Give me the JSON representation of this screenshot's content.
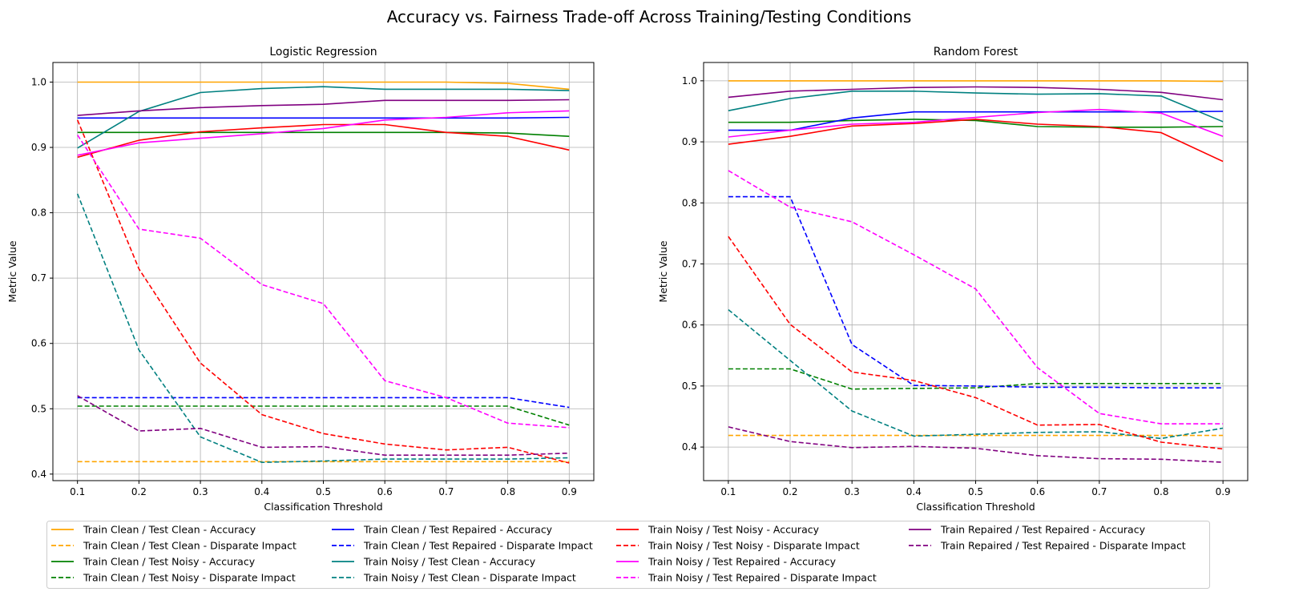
{
  "figure": {
    "suptitle": "Accuracy vs. Fairness Trade-off Across Training/Testing Conditions"
  },
  "series_styles": [
    {
      "name": "Train Clean / Test Clean - Accuracy",
      "color": "#ffa500",
      "dash": "solid"
    },
    {
      "name": "Train Clean / Test Clean - Disparate Impact",
      "color": "#ffa500",
      "dash": "dashed"
    },
    {
      "name": "Train Clean / Test Noisy - Accuracy",
      "color": "#008000",
      "dash": "solid"
    },
    {
      "name": "Train Clean / Test Noisy - Disparate Impact",
      "color": "#008000",
      "dash": "dashed"
    },
    {
      "name": "Train Clean / Test Repaired - Accuracy",
      "color": "#0000ff",
      "dash": "solid"
    },
    {
      "name": "Train Clean / Test Repaired - Disparate Impact",
      "color": "#0000ff",
      "dash": "dashed"
    },
    {
      "name": "Train Noisy / Test Clean - Accuracy",
      "color": "#008080",
      "dash": "solid"
    },
    {
      "name": "Train Noisy / Test Clean - Disparate Impact",
      "color": "#008080",
      "dash": "dashed"
    },
    {
      "name": "Train Noisy / Test Noisy - Accuracy",
      "color": "#ff0000",
      "dash": "solid"
    },
    {
      "name": "Train Noisy / Test Noisy - Disparate Impact",
      "color": "#ff0000",
      "dash": "dashed"
    },
    {
      "name": "Train Noisy / Test Repaired - Accuracy",
      "color": "#ff00ff",
      "dash": "solid"
    },
    {
      "name": "Train Noisy / Test Repaired - Disparate Impact",
      "color": "#ff00ff",
      "dash": "dashed"
    },
    {
      "name": "Train Repaired / Test Repaired - Accuracy",
      "color": "#800080",
      "dash": "solid"
    },
    {
      "name": "Train Repaired / Test Repaired - Disparate Impact",
      "color": "#800080",
      "dash": "dashed"
    }
  ],
  "legend": {
    "placement": "bottom-center",
    "columns": 4
  },
  "chart_data": [
    {
      "type": "line",
      "title": "Logistic Regression",
      "xlabel": "Classification Threshold",
      "ylabel": "Metric Value",
      "grid": true,
      "xlim": [
        0.06,
        0.94
      ],
      "ylim": [
        0.39,
        1.03
      ],
      "xticks": [
        "0.1",
        "0.2",
        "0.3",
        "0.4",
        "0.5",
        "0.6",
        "0.7",
        "0.8",
        "0.9"
      ],
      "yticks": [
        "0.4",
        "0.5",
        "0.6",
        "0.7",
        "0.8",
        "0.9",
        "1.0"
      ],
      "x": [
        0.1,
        0.2,
        0.3,
        0.4,
        0.5,
        0.6,
        0.7,
        0.8,
        0.9
      ],
      "series": [
        {
          "name": "Train Clean / Test Clean - Accuracy",
          "values": [
            1.0,
            1.0,
            1.0,
            1.0,
            1.0,
            1.0,
            1.0,
            0.998,
            0.989
          ]
        },
        {
          "name": "Train Clean / Test Clean - Disparate Impact",
          "values": [
            0.419,
            0.419,
            0.419,
            0.419,
            0.419,
            0.419,
            0.419,
            0.419,
            0.419
          ]
        },
        {
          "name": "Train Clean / Test Noisy - Accuracy",
          "values": [
            0.923,
            0.923,
            0.923,
            0.923,
            0.923,
            0.923,
            0.923,
            0.922,
            0.917
          ]
        },
        {
          "name": "Train Clean / Test Noisy - Disparate Impact",
          "values": [
            0.504,
            0.504,
            0.504,
            0.504,
            0.504,
            0.504,
            0.504,
            0.504,
            0.475
          ]
        },
        {
          "name": "Train Clean / Test Repaired - Accuracy",
          "values": [
            0.945,
            0.945,
            0.945,
            0.945,
            0.945,
            0.945,
            0.945,
            0.945,
            0.946
          ]
        },
        {
          "name": "Train Clean / Test Repaired - Disparate Impact",
          "values": [
            0.517,
            0.517,
            0.517,
            0.517,
            0.517,
            0.517,
            0.517,
            0.517,
            0.502
          ]
        },
        {
          "name": "Train Noisy / Test Clean - Accuracy",
          "values": [
            0.899,
            0.955,
            0.984,
            0.99,
            0.993,
            0.989,
            0.989,
            0.989,
            0.987
          ]
        },
        {
          "name": "Train Noisy / Test Clean - Disparate Impact",
          "values": [
            0.829,
            0.59,
            0.457,
            0.418,
            0.42,
            0.423,
            0.423,
            0.423,
            0.425
          ]
        },
        {
          "name": "Train Noisy / Test Noisy - Accuracy",
          "values": [
            0.885,
            0.911,
            0.924,
            0.93,
            0.935,
            0.935,
            0.923,
            0.917,
            0.896
          ]
        },
        {
          "name": "Train Noisy / Test Noisy - Disparate Impact",
          "values": [
            0.942,
            0.714,
            0.57,
            0.491,
            0.462,
            0.446,
            0.437,
            0.441,
            0.417
          ]
        },
        {
          "name": "Train Noisy / Test Repaired - Accuracy",
          "values": [
            0.888,
            0.907,
            0.914,
            0.921,
            0.929,
            0.942,
            0.946,
            0.953,
            0.956
          ]
        },
        {
          "name": "Train Noisy / Test Repaired - Disparate Impact",
          "values": [
            0.919,
            0.775,
            0.761,
            0.69,
            0.661,
            0.543,
            0.517,
            0.478,
            0.471
          ]
        },
        {
          "name": "Train Repaired / Test Repaired - Accuracy",
          "values": [
            0.949,
            0.956,
            0.961,
            0.964,
            0.966,
            0.972,
            0.972,
            0.972,
            0.973
          ]
        },
        {
          "name": "Train Repaired / Test Repaired - Disparate Impact",
          "values": [
            0.52,
            0.466,
            0.47,
            0.441,
            0.442,
            0.429,
            0.429,
            0.429,
            0.432
          ]
        }
      ]
    },
    {
      "type": "line",
      "title": "Random Forest",
      "xlabel": "Classification Threshold",
      "ylabel": "Metric Value",
      "grid": true,
      "xlim": [
        0.06,
        0.94
      ],
      "ylim": [
        0.345,
        1.03
      ],
      "xticks": [
        "0.1",
        "0.2",
        "0.3",
        "0.4",
        "0.5",
        "0.6",
        "0.7",
        "0.8",
        "0.9"
      ],
      "yticks": [
        "0.4",
        "0.5",
        "0.6",
        "0.7",
        "0.8",
        "0.9",
        "1.0"
      ],
      "x": [
        0.1,
        0.2,
        0.3,
        0.4,
        0.5,
        0.6,
        0.7,
        0.8,
        0.9
      ],
      "series": [
        {
          "name": "Train Clean / Test Clean - Accuracy",
          "values": [
            1.0,
            1.0,
            1.0,
            1.0,
            1.0,
            1.0,
            1.0,
            1.0,
            0.999
          ]
        },
        {
          "name": "Train Clean / Test Clean - Disparate Impact",
          "values": [
            0.419,
            0.419,
            0.419,
            0.419,
            0.419,
            0.419,
            0.419,
            0.419,
            0.419
          ]
        },
        {
          "name": "Train Clean / Test Noisy - Accuracy",
          "values": [
            0.932,
            0.932,
            0.935,
            0.937,
            0.935,
            0.925,
            0.924,
            0.924,
            0.925
          ]
        },
        {
          "name": "Train Clean / Test Noisy - Disparate Impact",
          "values": [
            0.528,
            0.528,
            0.495,
            0.496,
            0.497,
            0.504,
            0.504,
            0.504,
            0.504
          ]
        },
        {
          "name": "Train Clean / Test Repaired - Accuracy",
          "values": [
            0.919,
            0.919,
            0.939,
            0.949,
            0.949,
            0.949,
            0.949,
            0.949,
            0.95
          ]
        },
        {
          "name": "Train Clean / Test Repaired - Disparate Impact",
          "values": [
            0.81,
            0.81,
            0.568,
            0.501,
            0.5,
            0.498,
            0.498,
            0.497,
            0.497
          ]
        },
        {
          "name": "Train Noisy / Test Clean - Accuracy",
          "values": [
            0.951,
            0.971,
            0.983,
            0.983,
            0.98,
            0.978,
            0.979,
            0.975,
            0.933
          ]
        },
        {
          "name": "Train Noisy / Test Clean - Disparate Impact",
          "values": [
            0.625,
            0.542,
            0.459,
            0.418,
            0.421,
            0.424,
            0.425,
            0.414,
            0.431
          ]
        },
        {
          "name": "Train Noisy / Test Noisy - Accuracy",
          "values": [
            0.896,
            0.909,
            0.926,
            0.93,
            0.937,
            0.929,
            0.925,
            0.915,
            0.868
          ]
        },
        {
          "name": "Train Noisy / Test Noisy - Disparate Impact",
          "values": [
            0.745,
            0.601,
            0.523,
            0.509,
            0.481,
            0.436,
            0.437,
            0.408,
            0.397
          ]
        },
        {
          "name": "Train Noisy / Test Repaired - Accuracy",
          "values": [
            0.908,
            0.919,
            0.929,
            0.932,
            0.94,
            0.948,
            0.953,
            0.947,
            0.909
          ]
        },
        {
          "name": "Train Noisy / Test Repaired - Disparate Impact",
          "values": [
            0.853,
            0.793,
            0.769,
            0.715,
            0.659,
            0.53,
            0.455,
            0.438,
            0.438
          ]
        },
        {
          "name": "Train Repaired / Test Repaired - Accuracy",
          "values": [
            0.973,
            0.983,
            0.986,
            0.989,
            0.99,
            0.989,
            0.986,
            0.981,
            0.969
          ]
        },
        {
          "name": "Train Repaired / Test Repaired - Disparate Impact",
          "values": [
            0.433,
            0.409,
            0.399,
            0.401,
            0.398,
            0.386,
            0.381,
            0.38,
            0.375
          ]
        }
      ]
    }
  ]
}
